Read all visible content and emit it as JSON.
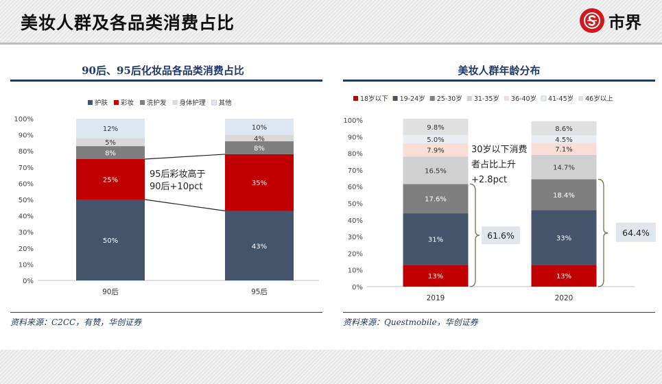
{
  "header": {
    "title": "美妆人群及各品类消费占比",
    "logo_text": "市界"
  },
  "left_panel": {
    "title": "90后、95后化妆品各品类消费占比",
    "source": "资料来源：C2CC，有赞，华创证券",
    "annotation": [
      "95后彩妆高于",
      "90后+10pct"
    ]
  },
  "right_panel": {
    "title": "美妆人群年龄分布",
    "source": "资料来源：Questmobile，华创证券",
    "annotation": [
      "30岁以下消费",
      "者占比上升",
      "+2.8pct"
    ],
    "bracket_labels": [
      "61.6%",
      "64.4%"
    ]
  },
  "chart_data": [
    {
      "type": "bar",
      "stacked": true,
      "categories": [
        "90后",
        "95后"
      ],
      "ylim": [
        0,
        100
      ],
      "yticks": [
        "0%",
        "10%",
        "20%",
        "30%",
        "40%",
        "50%",
        "60%",
        "70%",
        "80%",
        "90%",
        "100%"
      ],
      "legend_position": "top",
      "grid": false,
      "series": [
        {
          "name": "护肤",
          "values": [
            50,
            43
          ],
          "labels": [
            "50%",
            "43%"
          ],
          "color": "#44546a",
          "label_color": "#ffffff"
        },
        {
          "name": "彩妆",
          "values": [
            25,
            35
          ],
          "labels": [
            "25%",
            "35%"
          ],
          "color": "#c00000",
          "label_color": "#ffffff"
        },
        {
          "name": "洗护发",
          "values": [
            8,
            8
          ],
          "labels": [
            "8%",
            "8%"
          ],
          "color": "#7f7f7f",
          "label_color": "#ffffff"
        },
        {
          "name": "身体护理",
          "values": [
            5,
            4
          ],
          "labels": [
            "5%",
            "4%"
          ],
          "color": "#d9d9d9",
          "label_color": "#333333"
        },
        {
          "name": "其他",
          "values": [
            12,
            10
          ],
          "labels": [
            "12%",
            "10%"
          ],
          "color": "#dde7f2",
          "label_color": "#333333"
        }
      ]
    },
    {
      "type": "bar",
      "stacked": true,
      "categories": [
        "2019",
        "2020"
      ],
      "ylim": [
        0,
        100
      ],
      "yticks": [
        "0%",
        "10%",
        "20%",
        "30%",
        "40%",
        "50%",
        "60%",
        "70%",
        "80%",
        "90%",
        "100%"
      ],
      "legend_position": "top",
      "grid": false,
      "series": [
        {
          "name": "18岁以下",
          "values": [
            13,
            13
          ],
          "labels": [
            "13%",
            "13%"
          ],
          "color": "#c00000",
          "label_color": "#ffffff"
        },
        {
          "name": "19-24岁",
          "values": [
            31,
            33
          ],
          "labels": [
            "31%",
            "33%"
          ],
          "color": "#44546a",
          "label_color": "#ffffff"
        },
        {
          "name": "25-30岁",
          "values": [
            17.6,
            18.4
          ],
          "labels": [
            "17.6%",
            "18.4%"
          ],
          "color": "#7f7f7f",
          "label_color": "#ffffff"
        },
        {
          "name": "31-35岁",
          "values": [
            16.5,
            14.7
          ],
          "labels": [
            "16.5%",
            "14.7%"
          ],
          "color": "#d0d0d0",
          "label_color": "#333333"
        },
        {
          "name": "36-40岁",
          "values": [
            7.9,
            7.1
          ],
          "labels": [
            "7.9%",
            "7.1%"
          ],
          "color": "#f9dcd3",
          "label_color": "#333333"
        },
        {
          "name": "41-45岁",
          "values": [
            5.0,
            4.5
          ],
          "labels": [
            "5.0%",
            "4.5%"
          ],
          "color": "#e8eef6",
          "label_color": "#333333"
        },
        {
          "name": "46岁以上",
          "values": [
            9.8,
            8.6
          ],
          "labels": [
            "9.8%",
            "8.6%"
          ],
          "color": "#e0e0e0",
          "label_color": "#333333"
        }
      ]
    }
  ]
}
